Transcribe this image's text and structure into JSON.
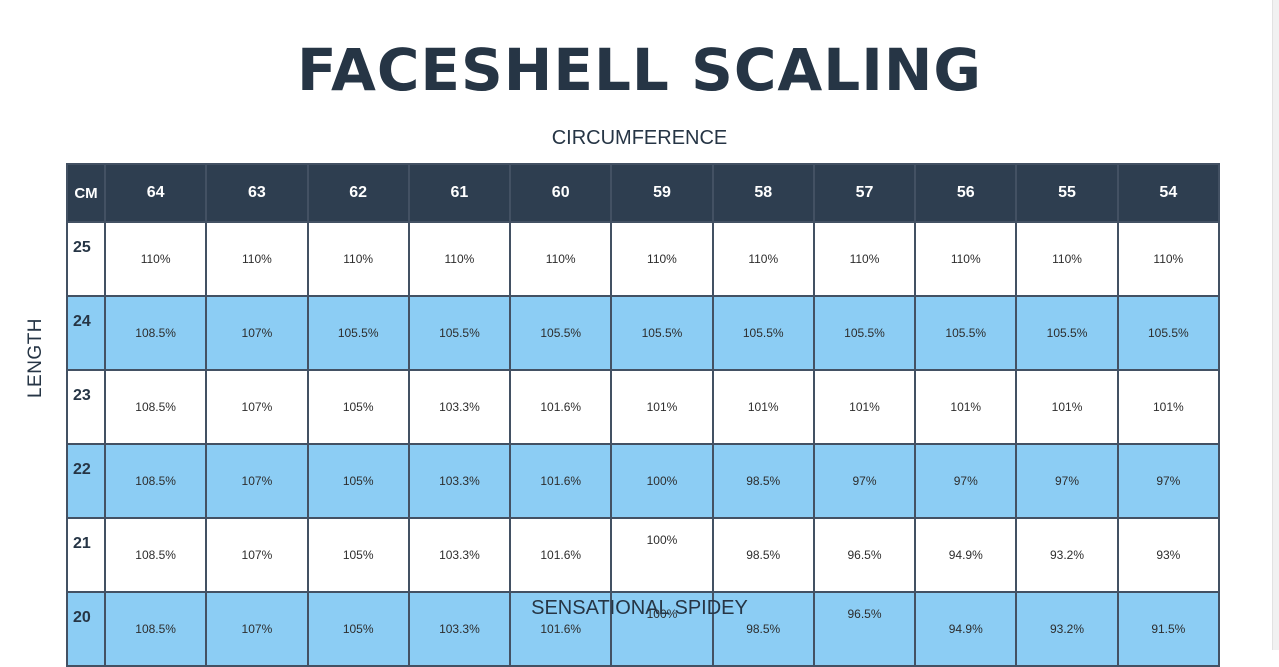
{
  "title": "FACESHELL SCALING",
  "x_axis_label": "CIRCUMFERENCE",
  "y_axis_label": "LENGTH",
  "footer": "SENSATIONAL SPIDEY",
  "colors": {
    "header_bg": "#2e3e50",
    "row_highlight": "#8ccdf4",
    "row_plain": "#ffffff",
    "title_text": "#263545"
  },
  "table": {
    "corner_label": "CM",
    "columns": [
      "64",
      "63",
      "62",
      "61",
      "60",
      "59",
      "58",
      "57",
      "56",
      "55",
      "54"
    ],
    "rows": [
      {
        "length": "25",
        "values": [
          "110%",
          "110%",
          "110%",
          "110%",
          "110%",
          "110%",
          "110%",
          "110%",
          "110%",
          "110%",
          "110%"
        ]
      },
      {
        "length": "24",
        "values": [
          "108.5%",
          "107%",
          "105.5%",
          "105.5%",
          "105.5%",
          "105.5%",
          "105.5%",
          "105.5%",
          "105.5%",
          "105.5%",
          "105.5%"
        ]
      },
      {
        "length": "23",
        "values": [
          "108.5%",
          "107%",
          "105%",
          "103.3%",
          "101.6%",
          "101%",
          "101%",
          "101%",
          "101%",
          "101%",
          "101%"
        ]
      },
      {
        "length": "22",
        "values": [
          "108.5%",
          "107%",
          "105%",
          "103.3%",
          "101.6%",
          "100%",
          "98.5%",
          "97%",
          "97%",
          "97%",
          "97%"
        ]
      },
      {
        "length": "21",
        "values": [
          "108.5%",
          "107%",
          "105%",
          "103.3%",
          "101.6%",
          "100%",
          "98.5%",
          "96.5%",
          "94.9%",
          "93.2%",
          "93%"
        ]
      },
      {
        "length": "20",
        "values": [
          "108.5%",
          "107%",
          "105%",
          "103.3%",
          "101.6%",
          "100%",
          "98.5%",
          "96.5%",
          "94.9%",
          "93.2%",
          "91.5%"
        ]
      }
    ]
  }
}
